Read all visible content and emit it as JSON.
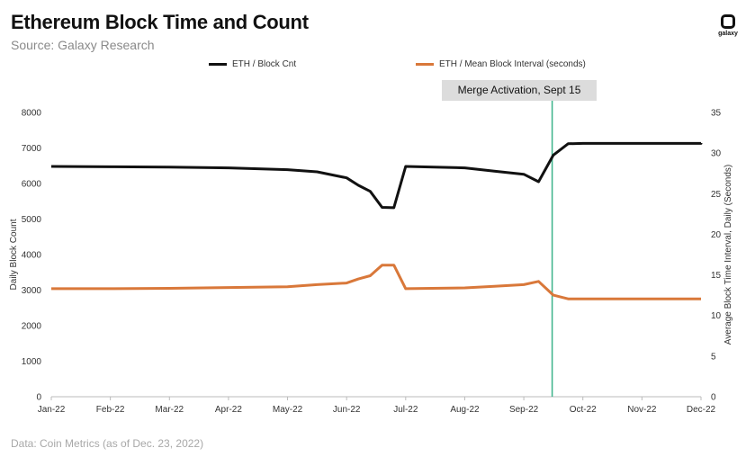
{
  "header": {
    "title": "Ethereum Block Time and Count",
    "subtitle": "Source: Galaxy Research",
    "logo_text": "galaxy"
  },
  "footer": {
    "source_note": "Data: Coin Metrics (as of Dec. 23, 2022)"
  },
  "annotation": {
    "label": "Merge Activation, Sept 15",
    "line_color": "#3bb38a"
  },
  "chart_data": {
    "type": "line",
    "title": "Ethereum Block Time and Count",
    "subtitle": "Source: Galaxy Research",
    "x_type": "month",
    "x_ticks": [
      "Jan-22",
      "Feb-22",
      "Mar-22",
      "Apr-22",
      "May-22",
      "Jun-22",
      "Jul-22",
      "Aug-22",
      "Sep-22",
      "Oct-22",
      "Nov-22",
      "Dec-22"
    ],
    "x_range": [
      "Jan-22",
      "Dec-22"
    ],
    "ylabel": "Daily Block Count",
    "y2label": "Average Block Time Interval, Daily (Seconds)",
    "ylim": [
      0,
      8000
    ],
    "y_ticks": [
      0,
      1000,
      2000,
      3000,
      4000,
      5000,
      6000,
      7000,
      8000
    ],
    "y2lim": [
      0,
      35
    ],
    "y2_ticks": [
      0,
      5,
      10,
      15,
      20,
      25,
      30,
      35
    ],
    "grid": false,
    "legend_position": "top",
    "series": [
      {
        "name": "ETH / Block Cnt",
        "axis": "left",
        "color": "#111111",
        "points": [
          {
            "x": "Jan-22",
            "y": 6480
          },
          {
            "x": "Feb-22",
            "y": 6470
          },
          {
            "x": "Mar-22",
            "y": 6460
          },
          {
            "x": "Apr-22",
            "y": 6440
          },
          {
            "x": "May-22",
            "y": 6390
          },
          {
            "x": "May-22",
            "y": 6330
          },
          {
            "x": "Jun-22",
            "y": 6160
          },
          {
            "x": "Jun-22",
            "y": 5950
          },
          {
            "x": "Jun-22",
            "y": 5780
          },
          {
            "x": "Jun-22",
            "y": 5330
          },
          {
            "x": "Jun-22",
            "y": 5320
          },
          {
            "x": "Jul-22",
            "y": 6480
          },
          {
            "x": "Aug-22",
            "y": 6440
          },
          {
            "x": "Aug-22",
            "y": 6350
          },
          {
            "x": "Sep-22",
            "y": 6260
          },
          {
            "x": "Sep-22",
            "y": 6050
          },
          {
            "x": "Sep-22",
            "y": 6800
          },
          {
            "x": "Sep-22",
            "y": 7120
          },
          {
            "x": "Oct-22",
            "y": 7130
          },
          {
            "x": "Nov-22",
            "y": 7130
          },
          {
            "x": "Dec-22",
            "y": 7130
          },
          {
            "x": "Dec-22",
            "y": 7140
          }
        ]
      },
      {
        "name": "ETH / Mean Block Interval (seconds)",
        "axis": "right",
        "color": "#d9783a",
        "points": [
          {
            "x": "Jan-22",
            "y": 13.3
          },
          {
            "x": "Feb-22",
            "y": 13.3
          },
          {
            "x": "Mar-22",
            "y": 13.35
          },
          {
            "x": "Apr-22",
            "y": 13.45
          },
          {
            "x": "May-22",
            "y": 13.55
          },
          {
            "x": "May-22",
            "y": 13.8
          },
          {
            "x": "Jun-22",
            "y": 14.0
          },
          {
            "x": "Jun-22",
            "y": 14.5
          },
          {
            "x": "Jun-22",
            "y": 14.9
          },
          {
            "x": "Jun-22",
            "y": 16.2
          },
          {
            "x": "Jun-22",
            "y": 16.2
          },
          {
            "x": "Jul-22",
            "y": 13.3
          },
          {
            "x": "Aug-22",
            "y": 13.4
          },
          {
            "x": "Aug-22",
            "y": 13.6
          },
          {
            "x": "Sep-22",
            "y": 13.8
          },
          {
            "x": "Sep-22",
            "y": 14.2
          },
          {
            "x": "Sep-22",
            "y": 12.5
          },
          {
            "x": "Sep-22",
            "y": 12.05
          },
          {
            "x": "Oct-22",
            "y": 12.05
          },
          {
            "x": "Nov-22",
            "y": 12.05
          },
          {
            "x": "Dec-22",
            "y": 12.05
          },
          {
            "x": "Dec-22",
            "y": 12.05
          }
        ]
      }
    ],
    "annotations": [
      {
        "text": "Merge Activation, Sept 15",
        "x": "Sep-22"
      }
    ]
  }
}
